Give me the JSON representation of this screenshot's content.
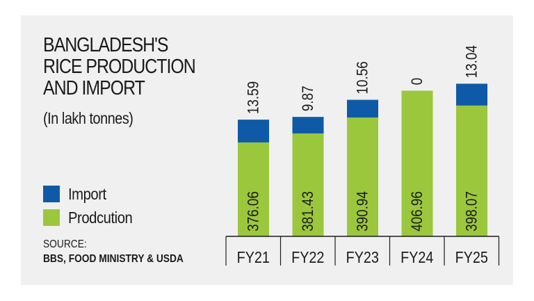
{
  "title": "BANGLADESH'S RICE PRODUCTION AND IMPORT",
  "subtitle": "(In lakh tonnes)",
  "legend": {
    "import_label": "Import",
    "production_label": "Prodcution"
  },
  "source": {
    "label": "SOURCE:",
    "text": "BBS, FOOD MINISTRY & USDA"
  },
  "colors": {
    "import": "#0f5aa6",
    "production": "#9bc73d",
    "background": "#f0f0f0"
  },
  "chart_data": {
    "type": "bar",
    "stacked": true,
    "categories": [
      "FY21",
      "FY22",
      "FY23",
      "FY24",
      "FY25"
    ],
    "series": [
      {
        "name": "Prodcution",
        "values": [
          376.06,
          381.43,
          390.94,
          406.96,
          398.07
        ],
        "labels": [
          "376.06",
          "381.43",
          "390.94",
          "406.96",
          "398.07"
        ]
      },
      {
        "name": "Import",
        "values": [
          13.59,
          9.87,
          10.56,
          0,
          13.04
        ],
        "labels": [
          "13.59",
          "9.87",
          "10.56",
          "0",
          "13.04"
        ]
      }
    ],
    "title": "BANGLADESH'S RICE PRODUCTION AND IMPORT",
    "ylabel": "",
    "xlabel": "",
    "grid": false,
    "legend_position": "left"
  }
}
